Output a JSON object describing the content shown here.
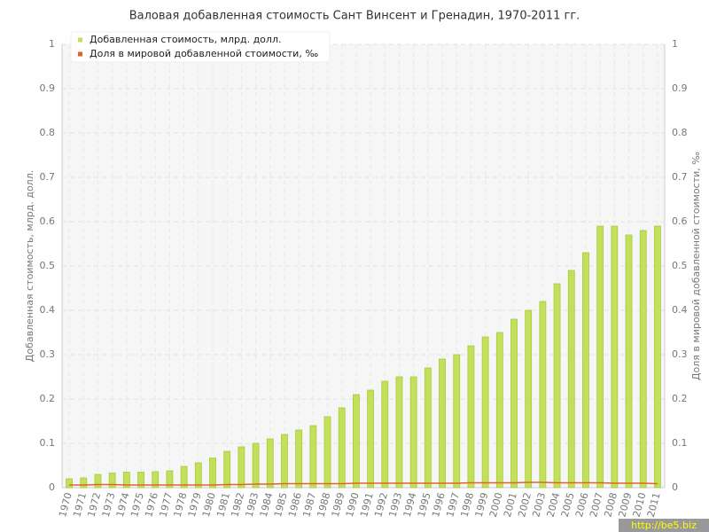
{
  "chart_data": {
    "type": "bar-line",
    "title": "Валовая добавленная стоимость Сант Винсент и Гренадин, 1970-2011 гг.",
    "y_label": "Добавленная стоимость, млрд. долл.",
    "y2_label": "Доля в мировой добавленной стоимости, ‰",
    "watermark": "http://be5.biz",
    "categories": [
      "1970",
      "1971",
      "1972",
      "1973",
      "1974",
      "1975",
      "1976",
      "1977",
      "1978",
      "1979",
      "1980",
      "1981",
      "1982",
      "1983",
      "1984",
      "1985",
      "1986",
      "1987",
      "1988",
      "1989",
      "1990",
      "1991",
      "1992",
      "1993",
      "1994",
      "1995",
      "1996",
      "1997",
      "1998",
      "1999",
      "2000",
      "2001",
      "2002",
      "2003",
      "2004",
      "2005",
      "2006",
      "2007",
      "2008",
      "2009",
      "2010",
      "2011"
    ],
    "series": [
      {
        "name": "Добавленная стоимость, млрд. долл.",
        "type": "bar",
        "color": "#c3e05a",
        "values": [
          0.02,
          0.022,
          0.03,
          0.033,
          0.035,
          0.035,
          0.036,
          0.038,
          0.048,
          0.056,
          0.067,
          0.082,
          0.092,
          0.1,
          0.11,
          0.12,
          0.13,
          0.14,
          0.16,
          0.18,
          0.21,
          0.22,
          0.24,
          0.25,
          0.25,
          0.27,
          0.29,
          0.3,
          0.32,
          0.34,
          0.35,
          0.38,
          0.4,
          0.42,
          0.46,
          0.49,
          0.53,
          0.59,
          0.59,
          0.57,
          0.58,
          0.59
        ]
      },
      {
        "name": "Доля в мировой добавленной стоимости, ‰",
        "type": "line",
        "axis": "y2",
        "color": "#e0642a",
        "values": [
          0.006,
          0.006,
          0.007,
          0.007,
          0.006,
          0.006,
          0.006,
          0.006,
          0.006,
          0.006,
          0.006,
          0.007,
          0.007,
          0.008,
          0.008,
          0.009,
          0.009,
          0.009,
          0.009,
          0.009,
          0.01,
          0.01,
          0.01,
          0.01,
          0.01,
          0.01,
          0.01,
          0.01,
          0.011,
          0.011,
          0.011,
          0.011,
          0.012,
          0.012,
          0.011,
          0.011,
          0.011,
          0.011,
          0.01,
          0.01,
          0.01,
          0.009
        ]
      }
    ],
    "ylim": [
      0,
      1
    ],
    "yticks": [
      0,
      0.1,
      0.2,
      0.3,
      0.4,
      0.5,
      0.6,
      0.7,
      0.8,
      0.9,
      1
    ],
    "y2lim": [
      0,
      1
    ],
    "y2ticks": [
      0,
      0.1,
      0.2,
      0.3,
      0.4,
      0.5,
      0.6,
      0.7,
      0.8,
      0.9,
      1
    ],
    "grid": true
  }
}
